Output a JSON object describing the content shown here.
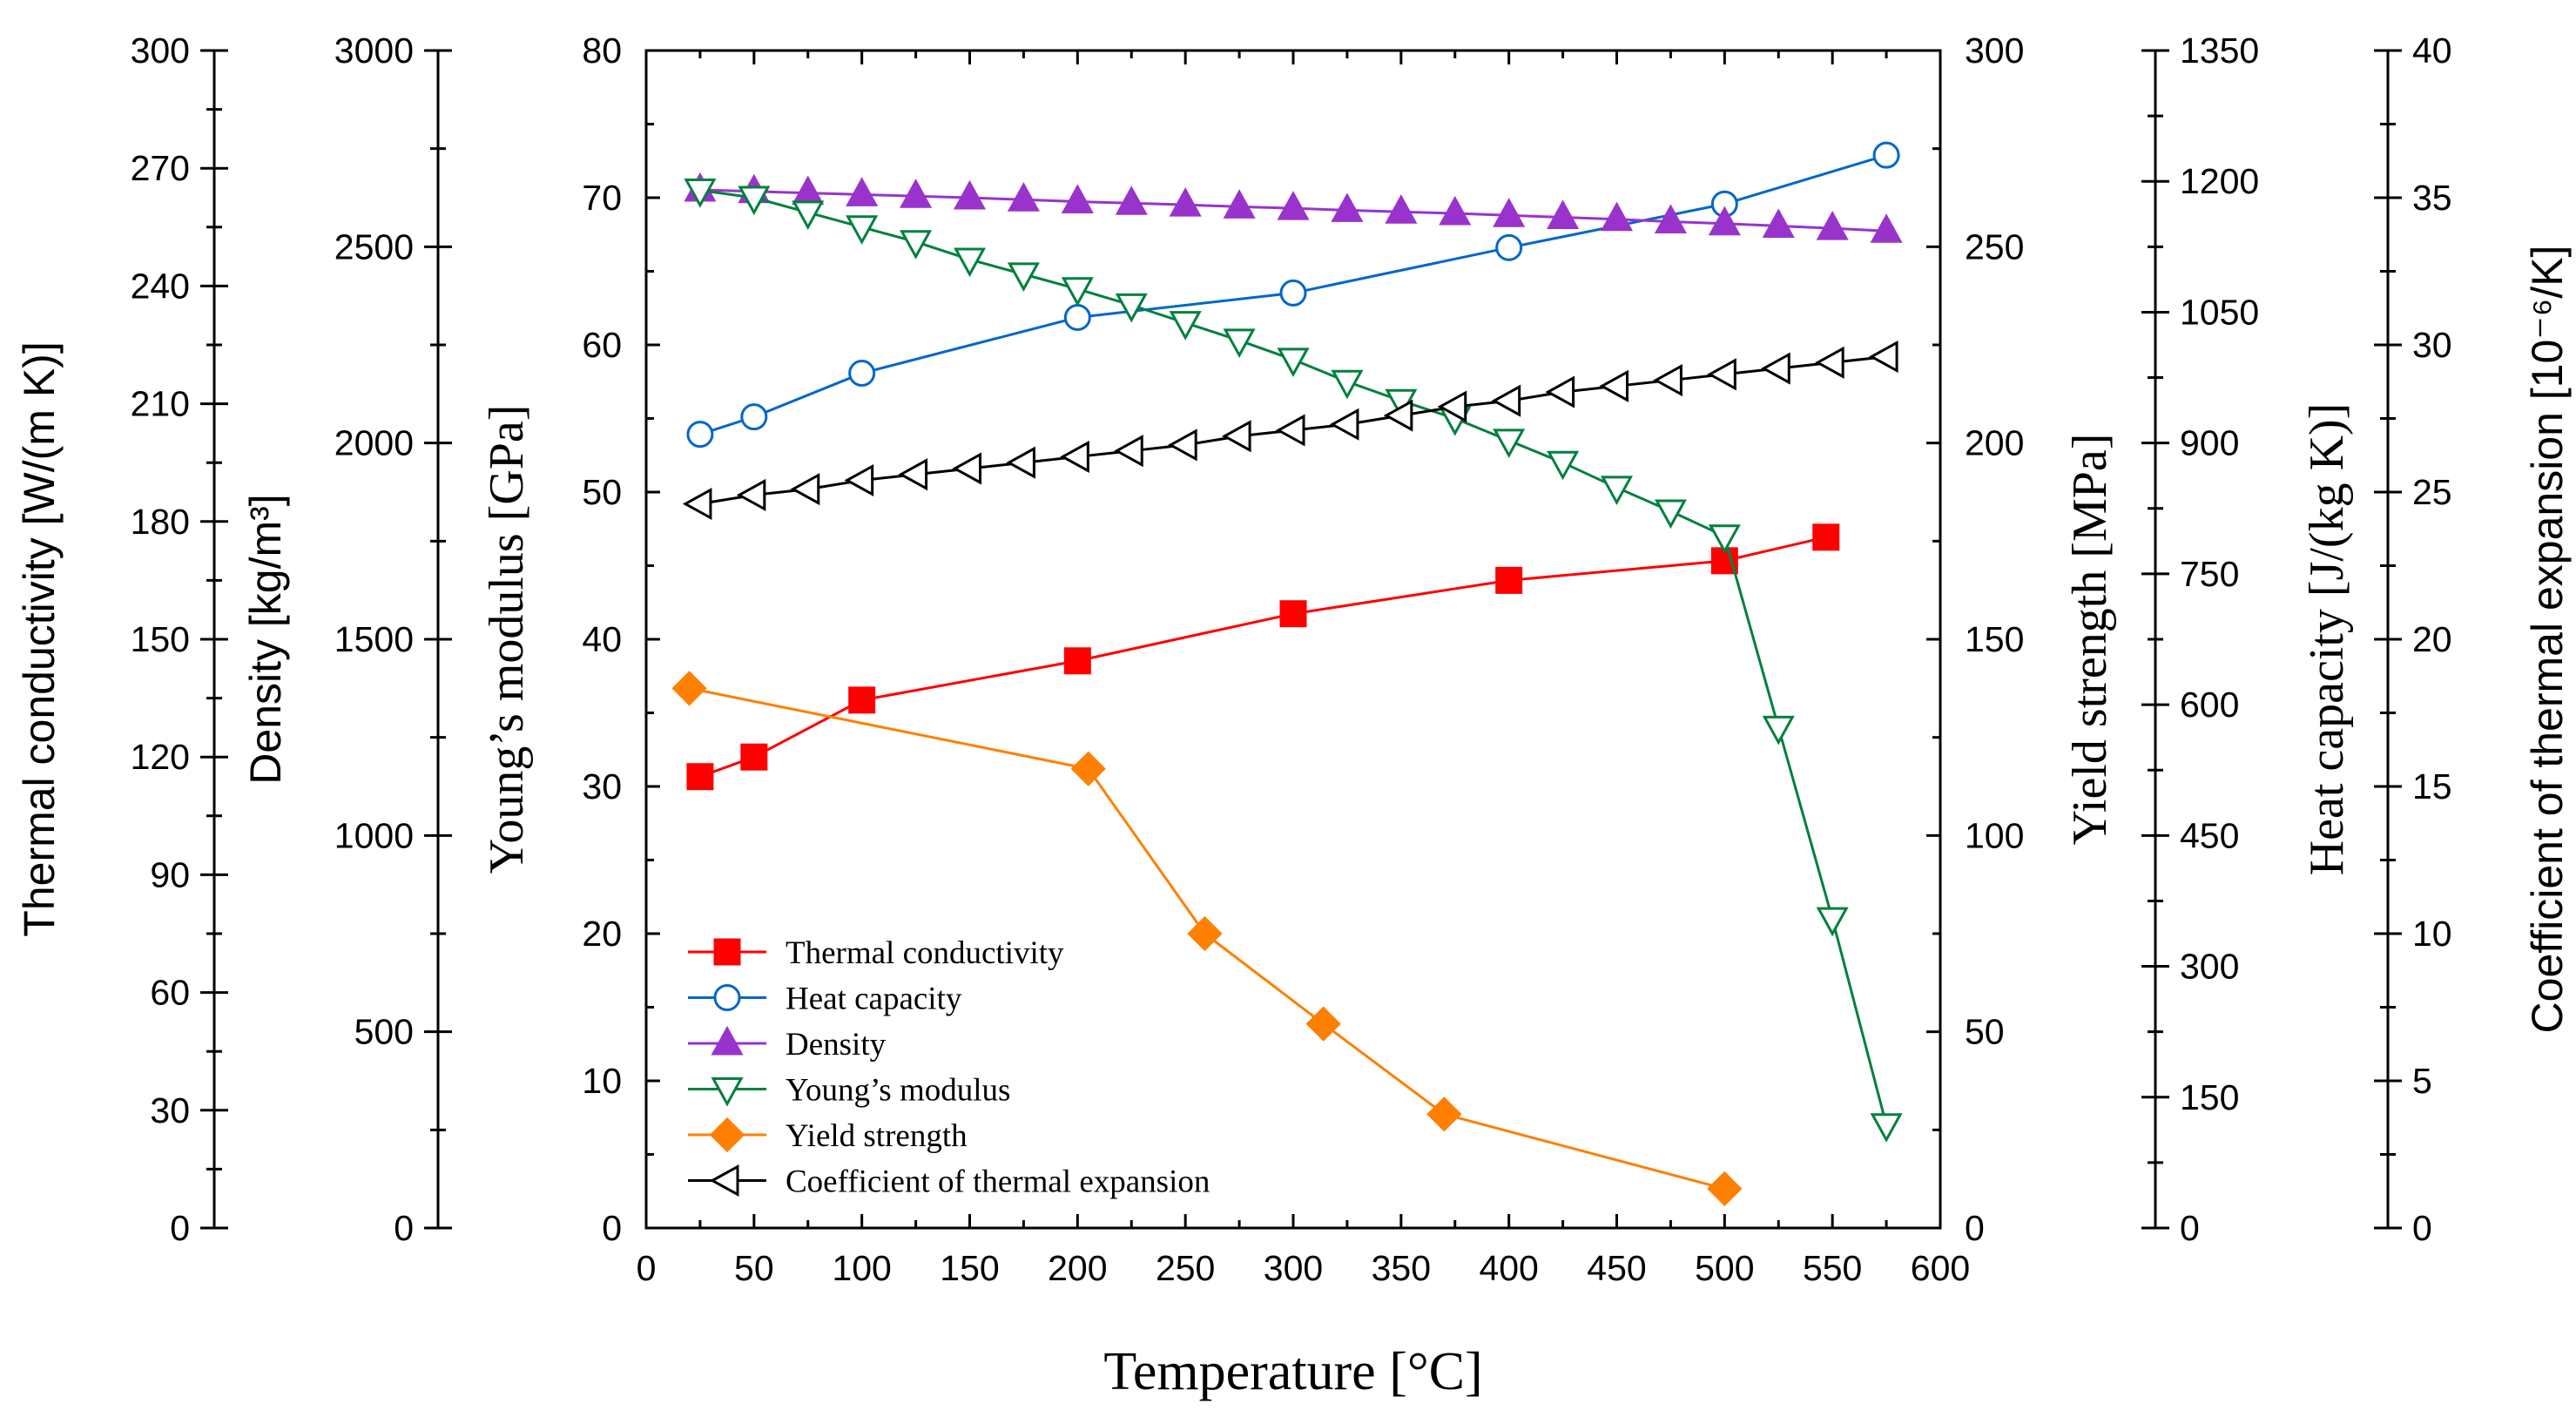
{
  "chart_data": {
    "type": "line",
    "xlabel": "Temperature [°C]",
    "xlim": [
      0,
      600
    ],
    "xticks": [
      0,
      50,
      100,
      150,
      200,
      250,
      300,
      350,
      400,
      450,
      500,
      550,
      600
    ],
    "axes": [
      {
        "id": "tc",
        "label": "Thermal conductivity [W/(m K)]",
        "lim": [
          0,
          300
        ],
        "ticks": [
          0,
          30,
          60,
          90,
          120,
          150,
          180,
          210,
          240,
          270,
          300
        ]
      },
      {
        "id": "rho",
        "label": "Density [kg/m³]",
        "lim": [
          0,
          3000
        ],
        "ticks": [
          0,
          500,
          1000,
          1500,
          2000,
          2500,
          3000
        ]
      },
      {
        "id": "E",
        "label": "Young’s modulus [GPa]",
        "lim": [
          0,
          80
        ],
        "ticks": [
          0,
          10,
          20,
          30,
          40,
          50,
          60,
          70,
          80
        ]
      },
      {
        "id": "ys",
        "label": "Yield strength [MPa]",
        "lim": [
          0,
          300
        ],
        "ticks": [
          0,
          50,
          100,
          150,
          200,
          250,
          300
        ]
      },
      {
        "id": "cp",
        "label": "Heat capacity [J/(kg K)]",
        "lim": [
          0,
          1350
        ],
        "ticks": [
          0,
          150,
          300,
          450,
          600,
          750,
          900,
          1050,
          1200,
          1350
        ]
      },
      {
        "id": "cte",
        "label": "Coefficient of thermal expansion [10⁻⁶/K]",
        "lim": [
          0,
          40
        ],
        "ticks": [
          0,
          5,
          10,
          15,
          20,
          25,
          30,
          35,
          40
        ]
      }
    ],
    "series": [
      {
        "name": "Thermal conductivity",
        "axis": "tc",
        "color": "#ff0000",
        "marker": "square-filled",
        "x": [
          25,
          50,
          100,
          200,
          300,
          400,
          500,
          547
        ],
        "y": [
          115,
          120,
          134.5,
          144.5,
          156.5,
          165,
          170,
          176
        ]
      },
      {
        "name": "Heat capacity",
        "axis": "cp",
        "color": "#0066cc",
        "marker": "circle-open",
        "x": [
          25,
          50,
          100,
          200,
          300,
          400,
          500,
          575
        ],
        "y": [
          910,
          930,
          980,
          1044,
          1072,
          1124,
          1174,
          1230
        ]
      },
      {
        "name": "Density",
        "axis": "rho",
        "color": "#9933cc",
        "marker": "triangle-up-filled",
        "x": [
          25,
          50,
          75,
          100,
          125,
          150,
          175,
          200,
          225,
          250,
          275,
          300,
          325,
          350,
          375,
          400,
          425,
          450,
          475,
          500,
          525,
          550,
          575
        ],
        "y": [
          2645,
          2641,
          2637,
          2633,
          2629,
          2625,
          2620,
          2615,
          2611,
          2607,
          2602,
          2598,
          2593,
          2589,
          2585,
          2580,
          2575,
          2570,
          2564,
          2559,
          2553,
          2547,
          2540
        ]
      },
      {
        "name": "Young’s modulus",
        "axis": "E",
        "color": "#00803f",
        "marker": "triangle-down-open",
        "x": [
          25,
          50,
          75,
          100,
          125,
          150,
          175,
          200,
          225,
          250,
          275,
          300,
          325,
          350,
          375,
          400,
          425,
          450,
          475,
          500,
          525,
          550,
          575
        ],
        "y": [
          70.5,
          70,
          69,
          68,
          67,
          65.8,
          64.8,
          63.8,
          62.7,
          61.5,
          60.3,
          59,
          57.5,
          56.2,
          55,
          53.5,
          52,
          50.3,
          48.7,
          47,
          34,
          21,
          7
        ]
      },
      {
        "name": "Yield strength",
        "axis": "ys",
        "color": "#ff7f00",
        "marker": "diamond-filled",
        "x": [
          20,
          205,
          259,
          314,
          370,
          500
        ],
        "y": [
          137.5,
          117,
          75,
          52,
          29,
          10
        ]
      },
      {
        "name": "Coefficient of thermal expansion",
        "axis": "cte",
        "color": "#000000",
        "marker": "triangle-left-open",
        "x": [
          25,
          50,
          75,
          100,
          125,
          150,
          175,
          200,
          225,
          250,
          275,
          300,
          325,
          350,
          375,
          400,
          425,
          450,
          475,
          500,
          525,
          550,
          575
        ],
        "y": [
          24.6,
          24.9,
          25.1,
          25.4,
          25.6,
          25.8,
          26.0,
          26.2,
          26.4,
          26.6,
          26.9,
          27.1,
          27.3,
          27.6,
          27.9,
          28.1,
          28.4,
          28.6,
          28.8,
          29.0,
          29.2,
          29.4,
          29.6
        ]
      }
    ],
    "legend_position": "bottom-left"
  }
}
